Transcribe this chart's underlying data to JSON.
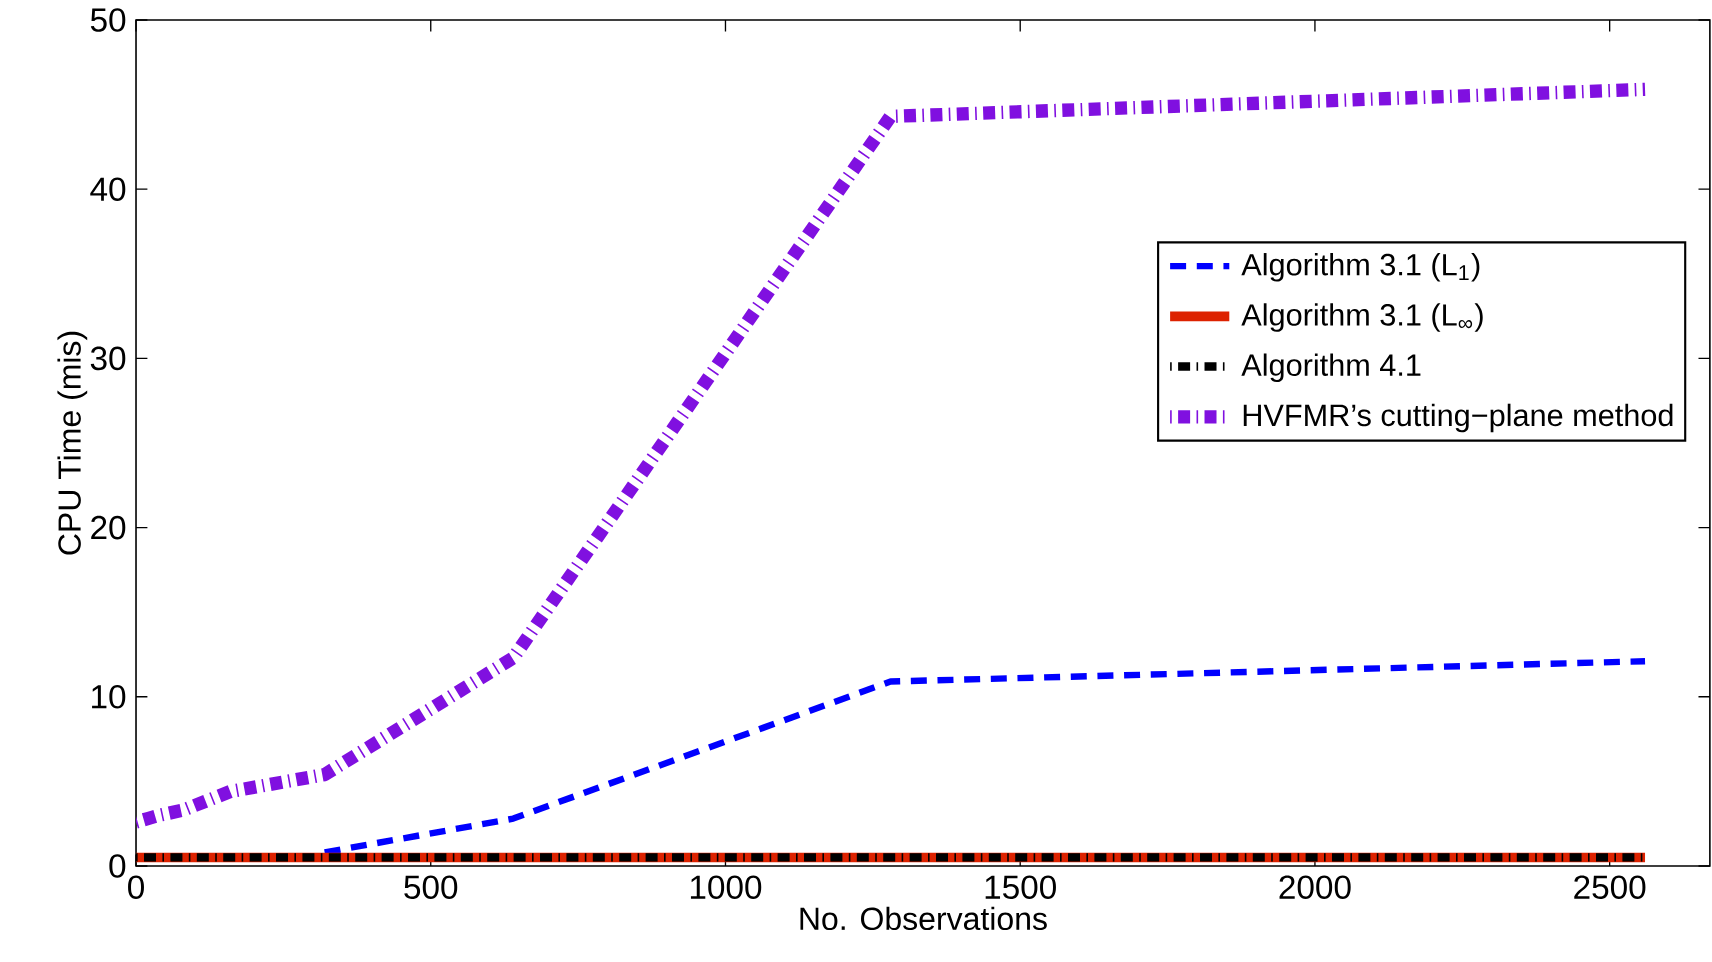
{
  "chart_data": {
    "type": "line",
    "xlabel": "No. Observations",
    "ylabel": "CPU Time (mis)",
    "x": [
      0,
      20,
      40,
      80,
      160,
      320,
      640,
      1280,
      2560
    ],
    "series": [
      {
        "name": "Algorithm 3.1 (L$_{1}$)",
        "color": "#0000ff",
        "line_style": "dashed",
        "values": [
          null,
          null,
          null,
          null,
          null,
          0.8,
          2.8,
          10.9,
          12.1
        ]
      },
      {
        "name": "Algorithm 3.1 (L$_{∞}$)",
        "color": "#dd2200",
        "line_style": "solid",
        "values": [
          0.5,
          0.5,
          0.5,
          0.5,
          0.5,
          0.5,
          0.5,
          0.5,
          0.5
        ]
      },
      {
        "name": "Algorithm 4.1",
        "color": "#000000",
        "line_style": "dotted",
        "values": [
          0.5,
          0.5,
          0.5,
          0.5,
          0.5,
          0.5,
          0.5,
          0.5,
          0.5
        ]
      },
      {
        "name": "HVFMR’s cutting−plane method",
        "color": "#8010e0",
        "line_style": "dotted",
        "values": [
          2.6,
          2.8,
          3.0,
          3.3,
          4.4,
          5.4,
          12.3,
          44.3,
          45.9
        ]
      }
    ],
    "xlim": [
      0,
      2670
    ],
    "ylim": [
      0,
      50
    ],
    "xticks": [
      0,
      500,
      1000,
      1500,
      2000,
      2500
    ],
    "yticks": [
      0,
      10,
      20,
      30,
      40,
      50
    ],
    "grid": false,
    "legend": "right",
    "marker": "none"
  }
}
